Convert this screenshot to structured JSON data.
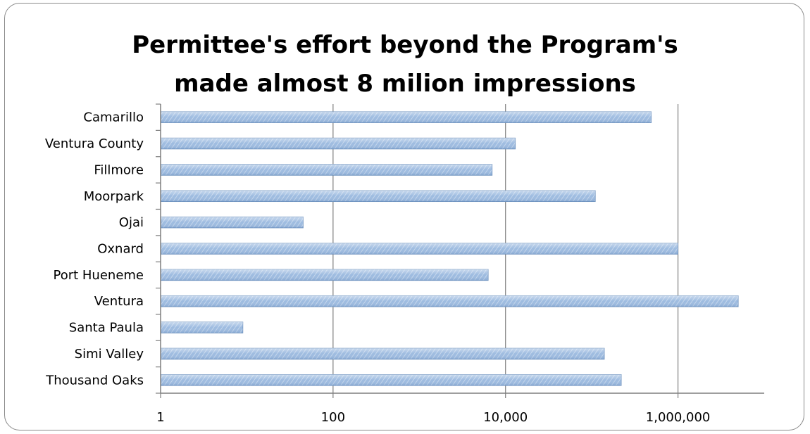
{
  "chart_data": {
    "type": "bar",
    "orientation": "horizontal",
    "title_lines": [
      "Permittee's effort beyond the Program's",
      "made almost 8 milion impressions"
    ],
    "categories": [
      "Camarillo",
      "Ventura County",
      "Fillmore",
      "Moorpark",
      "Ojai",
      "Oxnard",
      "Port Hueneme",
      "Ventura",
      "Santa Paula",
      "Simi Valley",
      "Thousand Oaks"
    ],
    "values": [
      490000,
      13000,
      7000,
      110000,
      45,
      1000000,
      6300,
      5000000,
      9,
      140000,
      220000
    ],
    "xscale": "log10",
    "xlim": [
      1,
      10000000
    ],
    "xticks": [
      1,
      100,
      10000,
      1000000
    ],
    "xtick_labels": [
      "1",
      "100",
      "10,000",
      "1,000,000"
    ],
    "grid": "vertical",
    "legend": "none",
    "colors": {
      "bar_fill_light": "#c9dbee",
      "bar_fill_dark": "#8fb1d8",
      "bar_edge": "#6f93bf",
      "axis": "#7f7f7f",
      "grid": "#7f7f7f",
      "frame": "#8a8a8a"
    }
  }
}
